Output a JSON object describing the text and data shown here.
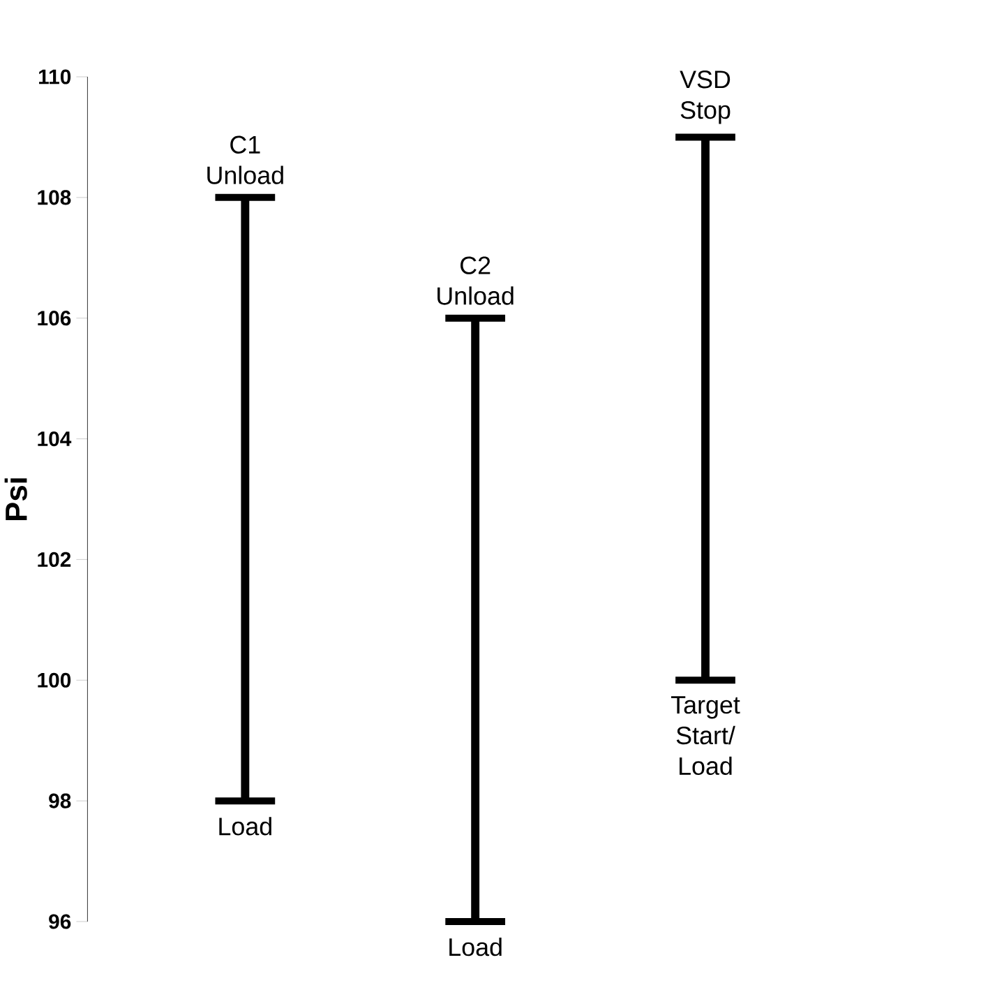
{
  "chart_data": {
    "type": "bar",
    "ylabel": "Psi",
    "categories": [
      null,
      null,
      null
    ],
    "base": [
      98,
      96,
      100
    ],
    "values": [
      10,
      10,
      9
    ],
    "color": "#000000",
    "ylim": [
      96,
      110
    ],
    "yticks": [
      96,
      98,
      100,
      102,
      104,
      106,
      108,
      110
    ],
    "annotations": [
      {
        "text": "C1 Unload",
        "y": 108
      },
      {
        "text": "Load",
        "y": 98
      },
      {
        "text": "C2 Unload",
        "y": 106
      },
      {
        "text": "Load",
        "y": 96
      },
      {
        "text": "VSD Stop",
        "y": 109
      },
      {
        "text": "Target Start/ Load",
        "y": 100
      }
    ]
  }
}
